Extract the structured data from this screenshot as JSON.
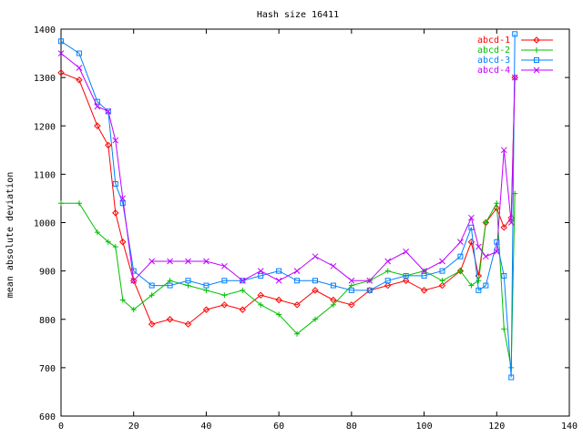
{
  "chart_data": {
    "type": "line",
    "title": "Hash size 16411",
    "xlabel": "",
    "ylabel": "mean absolute deviation",
    "xlim": [
      0,
      140
    ],
    "ylim": [
      600,
      1400
    ],
    "xticks": [
      0,
      20,
      40,
      60,
      80,
      100,
      120,
      140
    ],
    "yticks": [
      600,
      700,
      800,
      900,
      1000,
      1100,
      1200,
      1300,
      1400
    ],
    "grid": false,
    "legend_position": "top-right",
    "x": [
      0,
      5,
      10,
      13,
      15,
      17,
      20,
      25,
      30,
      35,
      40,
      45,
      50,
      55,
      60,
      65,
      70,
      75,
      80,
      85,
      90,
      95,
      100,
      105,
      110,
      113,
      115,
      117,
      120,
      122,
      124,
      125
    ],
    "series": [
      {
        "name": "abcd-1",
        "color": "#ff0000",
        "marker": "diamond",
        "values": [
          1310,
          1295,
          1200,
          1160,
          1020,
          960,
          880,
          790,
          800,
          790,
          820,
          830,
          820,
          850,
          840,
          830,
          860,
          840,
          830,
          860,
          870,
          880,
          860,
          870,
          900,
          960,
          890,
          1000,
          1030,
          990,
          1010,
          1300
        ]
      },
      {
        "name": "abcd-2",
        "color": "#00c000",
        "marker": "plus",
        "values": [
          1040,
          1040,
          980,
          960,
          950,
          840,
          820,
          850,
          880,
          870,
          860,
          850,
          860,
          830,
          810,
          770,
          800,
          830,
          870,
          880,
          900,
          890,
          900,
          880,
          900,
          870,
          880,
          1000,
          1040,
          780,
          700,
          1060
        ]
      },
      {
        "name": "abcd-3",
        "color": "#0080ff",
        "marker": "square",
        "values": [
          1375,
          1350,
          1250,
          1230,
          1080,
          1040,
          900,
          870,
          870,
          880,
          870,
          880,
          880,
          890,
          900,
          880,
          880,
          870,
          860,
          860,
          880,
          890,
          890,
          900,
          930,
          990,
          860,
          870,
          960,
          890,
          680,
          1390
        ]
      },
      {
        "name": "abcd-4",
        "color": "#c000ff",
        "marker": "cross",
        "values": [
          1350,
          1320,
          1240,
          1230,
          1170,
          1050,
          880,
          920,
          920,
          920,
          920,
          910,
          880,
          900,
          880,
          900,
          930,
          910,
          880,
          880,
          920,
          940,
          900,
          920,
          960,
          1010,
          950,
          930,
          940,
          1150,
          1000,
          1300
        ]
      }
    ]
  }
}
